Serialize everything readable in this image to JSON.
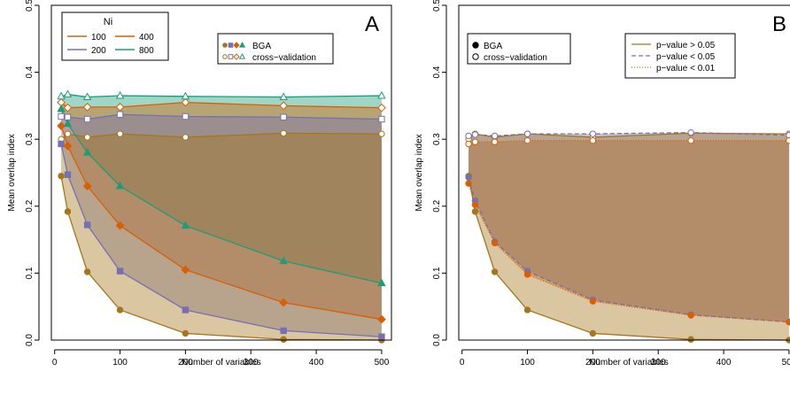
{
  "chart_data": [
    {
      "panel_label": "A",
      "type": "line",
      "xlabel": "Number of variables",
      "ylabel": "Mean overlap index",
      "xlim": [
        -5,
        515
      ],
      "ylim": [
        0,
        0.5
      ],
      "x_ticks": [
        "0",
        "100",
        "200",
        "300",
        "400",
        "500"
      ],
      "y_ticks": [
        "0.0",
        "0.1",
        "0.2",
        "0.3",
        "0.4",
        "0.5"
      ],
      "x": [
        10,
        20,
        50,
        100,
        200,
        350,
        500
      ],
      "legend_groups": {
        "title": "Ni",
        "labels": [
          "100",
          "400",
          "200",
          "800"
        ]
      },
      "legend_methods": [
        "BGA",
        "cross−validation"
      ],
      "series": [
        {
          "name": "100",
          "color": "#a6761d",
          "marker": "circle",
          "bga": [
            0.245,
            0.192,
            0.102,
            0.045,
            0.01,
            0.001,
            0.0
          ],
          "cv": [
            0.3,
            0.308,
            0.303,
            0.308,
            0.303,
            0.309,
            0.308
          ]
        },
        {
          "name": "200",
          "color": "#7570b3",
          "marker": "square",
          "bga": [
            0.293,
            0.247,
            0.172,
            0.103,
            0.045,
            0.014,
            0.005
          ],
          "cv": [
            0.334,
            0.333,
            0.33,
            0.337,
            0.334,
            0.333,
            0.33
          ]
        },
        {
          "name": "400",
          "color": "#d95f02",
          "marker": "diamond",
          "bga": [
            0.32,
            0.29,
            0.23,
            0.171,
            0.105,
            0.056,
            0.031
          ],
          "cv": [
            0.355,
            0.347,
            0.348,
            0.348,
            0.355,
            0.35,
            0.347
          ]
        },
        {
          "name": "800",
          "color": "#1b9e77",
          "marker": "triangle",
          "bga": [
            0.345,
            0.323,
            0.28,
            0.23,
            0.171,
            0.118,
            0.085
          ],
          "cv": [
            0.364,
            0.367,
            0.363,
            0.365,
            0.364,
            0.363,
            0.365
          ]
        }
      ]
    },
    {
      "panel_label": "B",
      "type": "line",
      "xlabel": "Number of variables",
      "ylabel": "Mean overlap index",
      "xlim": [
        -5,
        515
      ],
      "ylim": [
        0,
        0.5
      ],
      "x_ticks": [
        "0",
        "100",
        "200",
        "300",
        "400",
        "500"
      ],
      "y_ticks": [
        "0.0",
        "0.1",
        "0.2",
        "0.3",
        "0.4",
        "0.5"
      ],
      "x": [
        10,
        20,
        50,
        100,
        200,
        350,
        500
      ],
      "legend_methods": [
        "BGA",
        "cross−validation"
      ],
      "legend_pvalues": [
        "p−value > 0.05",
        "p−value < 0.05",
        "p−value < 0.01"
      ],
      "series": [
        {
          "name": "p−value > 0.05",
          "color": "#a6761d",
          "line": "solid",
          "bga": [
            0.245,
            0.192,
            0.102,
            0.045,
            0.01,
            0.001,
            0.0
          ],
          "cv": [
            0.3,
            0.308,
            0.303,
            0.308,
            0.303,
            0.309,
            0.308
          ]
        },
        {
          "name": "p−value < 0.05",
          "color": "#7570b3",
          "line": "dashed",
          "bga": [
            0.243,
            0.208,
            0.147,
            0.103,
            0.06,
            0.038,
            0.027
          ],
          "cv": [
            0.305,
            0.307,
            0.305,
            0.308,
            0.308,
            0.31,
            0.306
          ]
        },
        {
          "name": "p−value < 0.01",
          "color": "#d95f02",
          "line": "dotted",
          "bga": [
            0.234,
            0.202,
            0.145,
            0.098,
            0.058,
            0.037,
            0.027
          ],
          "cv": [
            0.293,
            0.296,
            0.296,
            0.298,
            0.298,
            0.298,
            0.298
          ]
        }
      ]
    }
  ]
}
